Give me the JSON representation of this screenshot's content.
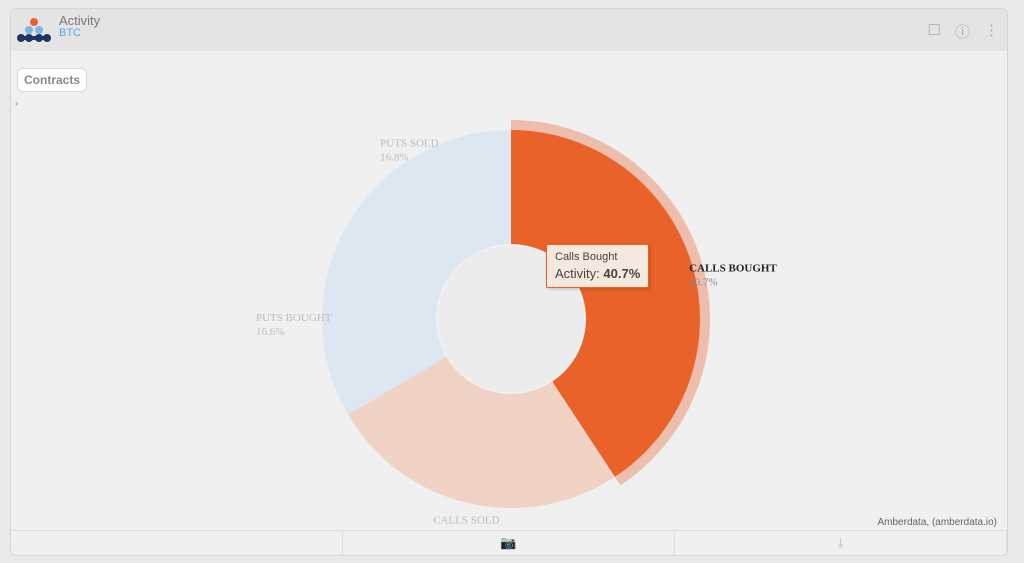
{
  "header": {
    "title": "Activity",
    "subtitle": "BTC",
    "icons": [
      "bookmark-icon",
      "info-icon",
      "more-icon"
    ]
  },
  "contracts_button": "Contracts",
  "credit": "Amberdata, (amberdata.io)",
  "tooltip": {
    "title": "Calls Bought",
    "label": "Activity:",
    "value": "40.7%"
  },
  "footer": {
    "icons": [
      "camera-icon",
      "download-icon"
    ]
  },
  "chart_data": {
    "type": "pie",
    "donut": true,
    "categories": [
      "CALLS BOUGHT",
      "CALLS SOLD",
      "PUTS BOUGHT",
      "PUTS SOLD"
    ],
    "values": [
      40.7,
      25.8,
      16.6,
      16.8
    ],
    "labels": [
      "40.7%",
      "25.8%",
      "16.6%",
      "16.8%"
    ],
    "colors": [
      "#e8622a",
      "#f1d3c6",
      "#dde7f1",
      "#dde7f1"
    ],
    "highlighted": "CALLS BOUGHT"
  }
}
